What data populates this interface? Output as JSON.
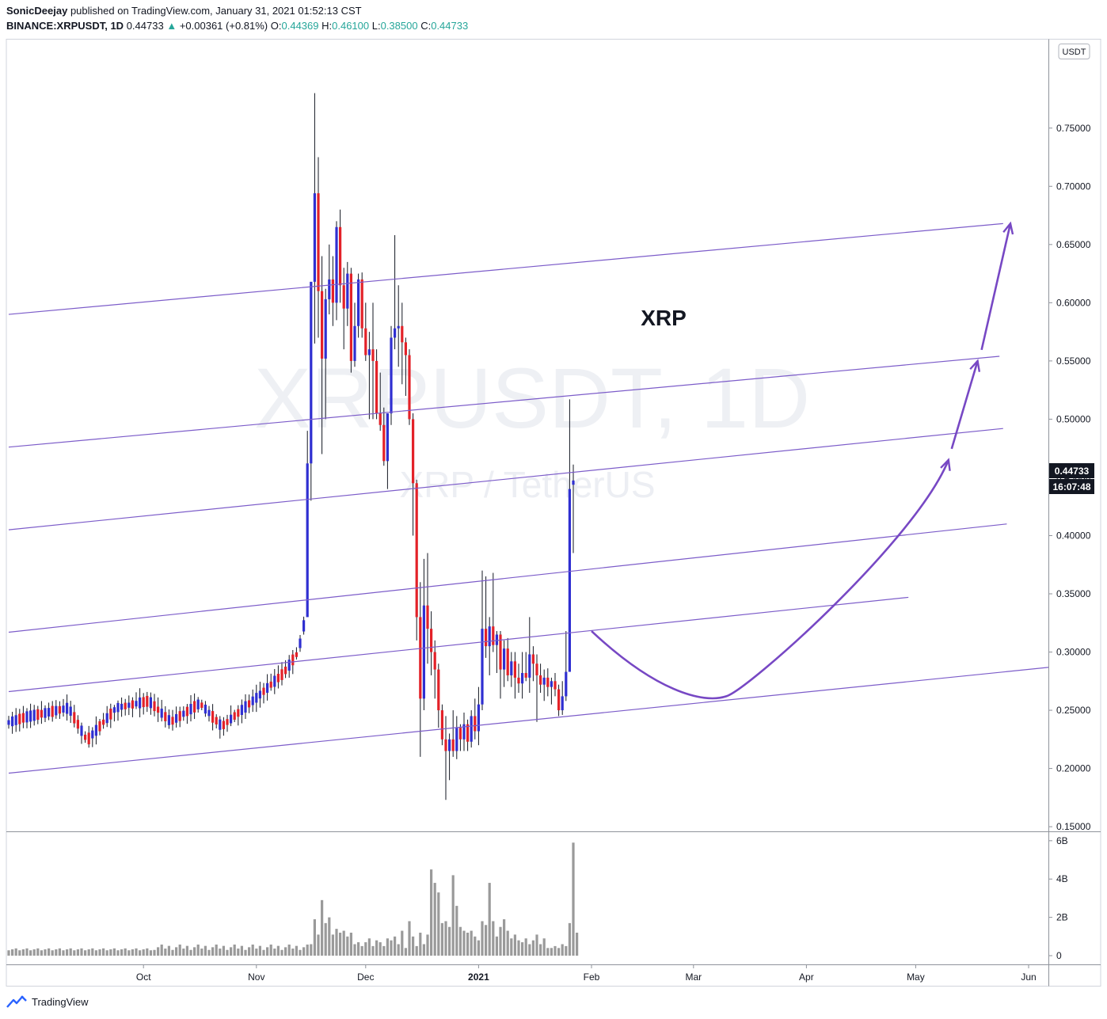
{
  "header": {
    "author": "SonicDeejay",
    "published_text": "published on TradingView.com, January 31, 2021 01:52:13 CST",
    "symbol": "BINANCE:XRPUSDT, 1D",
    "last": "0.44733",
    "change": "+0.00361 (+0.81%)",
    "o_label": "O:",
    "o": "0.44369",
    "h_label": "H:",
    "h": "0.46100",
    "l_label": "L:",
    "l": "0.38500",
    "c_label": "C:",
    "c": "0.44733"
  },
  "footer": {
    "brand": "TradingView",
    "logo_icon": "tradingview-logo-icon"
  },
  "chart_data": {
    "type": "candlestick",
    "symbol": "XRPUSDT",
    "watermark": "XRPUSDT, 1D",
    "watermark_sub": "XRP / TetherUS",
    "annotation": "XRP",
    "currency_badge": "USDT",
    "last_price_label": "0.44733",
    "countdown_label": "16:07:48",
    "price_axis_ticks": [
      "0.75000",
      "0.70000",
      "0.65000",
      "0.60000",
      "0.55000",
      "0.50000",
      "0.45000",
      "0.40000",
      "0.35000",
      "0.30000",
      "0.25000",
      "0.20000",
      "0.15000"
    ],
    "price_ylim": [
      0.146,
      0.826
    ],
    "volume_axis_ticks": [
      "6B",
      "4B",
      "2B",
      "0"
    ],
    "volume_ylim": [
      0,
      6.2
    ],
    "time_axis_ticks": [
      "Oct",
      "Nov",
      "Dec",
      "2021",
      "Feb",
      "Mar",
      "Apr",
      "May",
      "Jun"
    ],
    "up_color": "#2f2fd1",
    "down_color": "#e32128",
    "channel_color": "#7c5cc9",
    "arrow_color": "#7748c4",
    "series": [
      {
        "name": "price",
        "segments": [
          {
            "o": 0.239,
            "c": 0.244,
            "n": 5
          },
          {
            "o": 0.244,
            "c": 0.252,
            "n": 12
          },
          {
            "o": 0.252,
            "c": 0.224,
            "n": 5
          },
          {
            "o": 0.224,
            "c": 0.252,
            "n": 8
          },
          {
            "o": 0.252,
            "c": 0.258,
            "n": 9
          },
          {
            "o": 0.258,
            "c": 0.24,
            "n": 6
          },
          {
            "o": 0.24,
            "c": 0.256,
            "n": 8
          },
          {
            "o": 0.256,
            "c": 0.236,
            "n": 6
          },
          {
            "o": 0.236,
            "c": 0.262,
            "n": 10
          },
          {
            "o": 0.262,
            "c": 0.282,
            "n": 7
          },
          {
            "o": 0.282,
            "c": 0.3,
            "n": 4
          },
          {
            "o": 0.3,
            "c": 0.33,
            "n": 2
          }
        ],
        "explicit": [
          {
            "o": 0.33,
            "h": 0.49,
            "l": 0.4,
            "c": 0.462
          },
          {
            "o": 0.462,
            "h": 0.47,
            "l": 0.43,
            "c": 0.618
          },
          {
            "o": 0.618,
            "h": 0.78,
            "l": 0.565,
            "c": 0.694
          },
          {
            "o": 0.694,
            "h": 0.725,
            "l": 0.57,
            "c": 0.61
          },
          {
            "o": 0.61,
            "h": 0.64,
            "l": 0.47,
            "c": 0.552
          },
          {
            "o": 0.552,
            "h": 0.612,
            "l": 0.5,
            "c": 0.603
          },
          {
            "o": 0.603,
            "h": 0.65,
            "l": 0.59,
            "c": 0.62
          },
          {
            "o": 0.62,
            "h": 0.64,
            "l": 0.58,
            "c": 0.6
          },
          {
            "o": 0.6,
            "h": 0.67,
            "l": 0.585,
            "c": 0.665
          },
          {
            "o": 0.665,
            "h": 0.68,
            "l": 0.6,
            "c": 0.615
          },
          {
            "o": 0.615,
            "h": 0.63,
            "l": 0.56,
            "c": 0.595
          },
          {
            "o": 0.595,
            "h": 0.635,
            "l": 0.58,
            "c": 0.625
          },
          {
            "o": 0.625,
            "h": 0.63,
            "l": 0.54,
            "c": 0.55
          },
          {
            "o": 0.55,
            "h": 0.6,
            "l": 0.545,
            "c": 0.58
          },
          {
            "o": 0.58,
            "h": 0.625,
            "l": 0.57,
            "c": 0.62
          },
          {
            "o": 0.62,
            "h": 0.626,
            "l": 0.57,
            "c": 0.578
          },
          {
            "o": 0.578,
            "h": 0.6,
            "l": 0.55,
            "c": 0.555
          },
          {
            "o": 0.555,
            "h": 0.575,
            "l": 0.5,
            "c": 0.56
          },
          {
            "o": 0.56,
            "h": 0.6,
            "l": 0.5,
            "c": 0.55
          },
          {
            "o": 0.55,
            "h": 0.56,
            "l": 0.5,
            "c": 0.505
          },
          {
            "o": 0.505,
            "h": 0.54,
            "l": 0.49,
            "c": 0.495
          },
          {
            "o": 0.495,
            "h": 0.51,
            "l": 0.46,
            "c": 0.464
          },
          {
            "o": 0.464,
            "h": 0.5,
            "l": 0.44,
            "c": 0.505
          },
          {
            "o": 0.505,
            "h": 0.58,
            "l": 0.495,
            "c": 0.57
          },
          {
            "o": 0.57,
            "h": 0.658,
            "l": 0.56,
            "c": 0.578
          },
          {
            "o": 0.578,
            "h": 0.615,
            "l": 0.545,
            "c": 0.58
          },
          {
            "o": 0.58,
            "h": 0.6,
            "l": 0.53,
            "c": 0.566
          },
          {
            "o": 0.566,
            "h": 0.57,
            "l": 0.52,
            "c": 0.555
          },
          {
            "o": 0.555,
            "h": 0.56,
            "l": 0.495,
            "c": 0.5
          },
          {
            "o": 0.5,
            "h": 0.505,
            "l": 0.4,
            "c": 0.445
          },
          {
            "o": 0.445,
            "h": 0.448,
            "l": 0.31,
            "c": 0.33
          },
          {
            "o": 0.33,
            "h": 0.36,
            "l": 0.21,
            "c": 0.26
          },
          {
            "o": 0.26,
            "h": 0.38,
            "l": 0.25,
            "c": 0.34
          },
          {
            "o": 0.34,
            "h": 0.385,
            "l": 0.29,
            "c": 0.32
          },
          {
            "o": 0.32,
            "h": 0.335,
            "l": 0.28,
            "c": 0.3
          },
          {
            "o": 0.3,
            "h": 0.31,
            "l": 0.26,
            "c": 0.285
          },
          {
            "o": 0.285,
            "h": 0.29,
            "l": 0.235,
            "c": 0.25
          },
          {
            "o": 0.25,
            "h": 0.255,
            "l": 0.22,
            "c": 0.225
          },
          {
            "o": 0.225,
            "h": 0.245,
            "l": 0.173,
            "c": 0.215
          },
          {
            "o": 0.215,
            "h": 0.23,
            "l": 0.19,
            "c": 0.225
          },
          {
            "o": 0.225,
            "h": 0.25,
            "l": 0.21,
            "c": 0.215
          },
          {
            "o": 0.215,
            "h": 0.245,
            "l": 0.208,
            "c": 0.235
          },
          {
            "o": 0.235,
            "h": 0.238,
            "l": 0.215,
            "c": 0.225
          },
          {
            "o": 0.225,
            "h": 0.248,
            "l": 0.215,
            "c": 0.238
          },
          {
            "o": 0.238,
            "h": 0.242,
            "l": 0.215,
            "c": 0.223
          },
          {
            "o": 0.223,
            "h": 0.25,
            "l": 0.218,
            "c": 0.245
          },
          {
            "o": 0.245,
            "h": 0.26,
            "l": 0.225,
            "c": 0.232
          },
          {
            "o": 0.232,
            "h": 0.27,
            "l": 0.22,
            "c": 0.255
          },
          {
            "o": 0.255,
            "h": 0.37,
            "l": 0.25,
            "c": 0.32
          },
          {
            "o": 0.32,
            "h": 0.365,
            "l": 0.295,
            "c": 0.305
          },
          {
            "o": 0.305,
            "h": 0.33,
            "l": 0.28,
            "c": 0.322
          },
          {
            "o": 0.322,
            "h": 0.368,
            "l": 0.3,
            "c": 0.306
          },
          {
            "o": 0.306,
            "h": 0.318,
            "l": 0.282,
            "c": 0.315
          },
          {
            "o": 0.315,
            "h": 0.318,
            "l": 0.26,
            "c": 0.285
          },
          {
            "o": 0.285,
            "h": 0.31,
            "l": 0.27,
            "c": 0.303
          },
          {
            "o": 0.303,
            "h": 0.312,
            "l": 0.275,
            "c": 0.28
          },
          {
            "o": 0.28,
            "h": 0.3,
            "l": 0.27,
            "c": 0.292
          },
          {
            "o": 0.292,
            "h": 0.3,
            "l": 0.26,
            "c": 0.278
          },
          {
            "o": 0.278,
            "h": 0.29,
            "l": 0.265,
            "c": 0.273
          },
          {
            "o": 0.273,
            "h": 0.3,
            "l": 0.26,
            "c": 0.282
          },
          {
            "o": 0.282,
            "h": 0.3,
            "l": 0.275,
            "c": 0.278
          },
          {
            "o": 0.278,
            "h": 0.33,
            "l": 0.265,
            "c": 0.298
          },
          {
            "o": 0.298,
            "h": 0.305,
            "l": 0.275,
            "c": 0.29
          },
          {
            "o": 0.29,
            "h": 0.298,
            "l": 0.24,
            "c": 0.28
          },
          {
            "o": 0.28,
            "h": 0.29,
            "l": 0.265,
            "c": 0.272
          },
          {
            "o": 0.272,
            "h": 0.285,
            "l": 0.258,
            "c": 0.278
          },
          {
            "o": 0.278,
            "h": 0.286,
            "l": 0.262,
            "c": 0.27
          },
          {
            "o": 0.27,
            "h": 0.278,
            "l": 0.255,
            "c": 0.275
          },
          {
            "o": 0.275,
            "h": 0.282,
            "l": 0.262,
            "c": 0.268
          },
          {
            "o": 0.268,
            "h": 0.272,
            "l": 0.245,
            "c": 0.25
          },
          {
            "o": 0.25,
            "h": 0.275,
            "l": 0.246,
            "c": 0.262
          },
          {
            "o": 0.262,
            "h": 0.318,
            "l": 0.258,
            "c": 0.283
          },
          {
            "o": 0.283,
            "h": 0.517,
            "l": 0.36,
            "c": 0.44
          },
          {
            "o": 0.44369,
            "h": 0.461,
            "l": 0.385,
            "c": 0.44733
          }
        ]
      },
      {
        "name": "volume",
        "spikes": [
          {
            "i": 83,
            "v": 0.6
          },
          {
            "i": 84,
            "v": 1.9
          },
          {
            "i": 85,
            "v": 1.1
          },
          {
            "i": 86,
            "v": 2.9
          },
          {
            "i": 87,
            "v": 1.7
          },
          {
            "i": 88,
            "v": 2.0
          },
          {
            "i": 89,
            "v": 1.1
          },
          {
            "i": 90,
            "v": 1.4
          },
          {
            "i": 91,
            "v": 1.2
          },
          {
            "i": 92,
            "v": 1.3
          },
          {
            "i": 93,
            "v": 1.0
          },
          {
            "i": 94,
            "v": 1.2
          },
          {
            "i": 95,
            "v": 0.6
          },
          {
            "i": 96,
            "v": 0.7
          },
          {
            "i": 97,
            "v": 0.5
          },
          {
            "i": 98,
            "v": 0.7
          },
          {
            "i": 99,
            "v": 0.9
          },
          {
            "i": 100,
            "v": 0.5
          },
          {
            "i": 101,
            "v": 0.8
          },
          {
            "i": 102,
            "v": 0.7
          },
          {
            "i": 103,
            "v": 0.5
          },
          {
            "i": 104,
            "v": 0.9
          },
          {
            "i": 105,
            "v": 0.8
          },
          {
            "i": 106,
            "v": 1.0
          },
          {
            "i": 107,
            "v": 0.6
          },
          {
            "i": 108,
            "v": 1.3
          },
          {
            "i": 109,
            "v": 0.4
          },
          {
            "i": 110,
            "v": 1.8
          },
          {
            "i": 111,
            "v": 1.0
          },
          {
            "i": 112,
            "v": 0.5
          },
          {
            "i": 113,
            "v": 1.2
          },
          {
            "i": 114,
            "v": 0.6
          },
          {
            "i": 115,
            "v": 1.1
          },
          {
            "i": 116,
            "v": 4.5
          },
          {
            "i": 117,
            "v": 3.8
          },
          {
            "i": 118,
            "v": 3.3
          },
          {
            "i": 119,
            "v": 1.7
          },
          {
            "i": 120,
            "v": 1.8
          },
          {
            "i": 121,
            "v": 1.5
          },
          {
            "i": 122,
            "v": 4.2
          },
          {
            "i": 123,
            "v": 2.6
          },
          {
            "i": 124,
            "v": 1.5
          },
          {
            "i": 125,
            "v": 1.3
          },
          {
            "i": 126,
            "v": 1.2
          },
          {
            "i": 127,
            "v": 1.3
          },
          {
            "i": 128,
            "v": 1.0
          },
          {
            "i": 129,
            "v": 0.8
          },
          {
            "i": 130,
            "v": 1.8
          },
          {
            "i": 131,
            "v": 1.6
          },
          {
            "i": 132,
            "v": 3.8
          },
          {
            "i": 133,
            "v": 1.8
          },
          {
            "i": 134,
            "v": 1.0
          },
          {
            "i": 135,
            "v": 1.5
          },
          {
            "i": 136,
            "v": 1.9
          },
          {
            "i": 137,
            "v": 1.3
          },
          {
            "i": 138,
            "v": 0.9
          },
          {
            "i": 139,
            "v": 1.1
          },
          {
            "i": 140,
            "v": 0.8
          },
          {
            "i": 141,
            "v": 0.7
          },
          {
            "i": 142,
            "v": 0.9
          },
          {
            "i": 143,
            "v": 0.6
          },
          {
            "i": 144,
            "v": 0.8
          },
          {
            "i": 145,
            "v": 1.1
          },
          {
            "i": 146,
            "v": 0.6
          },
          {
            "i": 147,
            "v": 0.9
          },
          {
            "i": 148,
            "v": 0.4
          },
          {
            "i": 149,
            "v": 0.4
          },
          {
            "i": 150,
            "v": 0.5
          },
          {
            "i": 151,
            "v": 0.4
          },
          {
            "i": 152,
            "v": 0.6
          },
          {
            "i": 153,
            "v": 0.5
          },
          {
            "i": 154,
            "v": 1.7
          },
          {
            "i": 155,
            "v": 5.9
          },
          {
            "i": 156,
            "v": 1.2
          }
        ]
      },
      {
        "name": "channel_lines",
        "lines": [
          [
            [
              "2020-08-25",
              0.59
            ],
            [
              "2021-05-25",
              0.668
            ]
          ],
          [
            [
              "2020-08-25",
              0.476
            ],
            [
              "2021-05-24",
              0.554
            ]
          ],
          [
            [
              "2020-08-25",
              0.405
            ],
            [
              "2021-05-25",
              0.492
            ]
          ],
          [
            [
              "2020-08-25",
              0.317
            ],
            [
              "2021-05-26",
              0.41
            ]
          ],
          [
            [
              "2020-08-25",
              0.266
            ],
            [
              "2021-04-29",
              0.347
            ]
          ],
          [
            [
              "2020-08-25",
              0.196
            ],
            [
              "2021-06-29",
              0.294
            ]
          ]
        ]
      },
      {
        "name": "projected_path",
        "points": [
          [
            "2021-02-01",
            0.318
          ],
          [
            "2021-03-10",
            0.262
          ],
          [
            "2021-05-10",
            0.465
          ],
          [
            "2021-05-18",
            0.55
          ],
          [
            "2021-05-27",
            0.668
          ]
        ]
      }
    ]
  }
}
